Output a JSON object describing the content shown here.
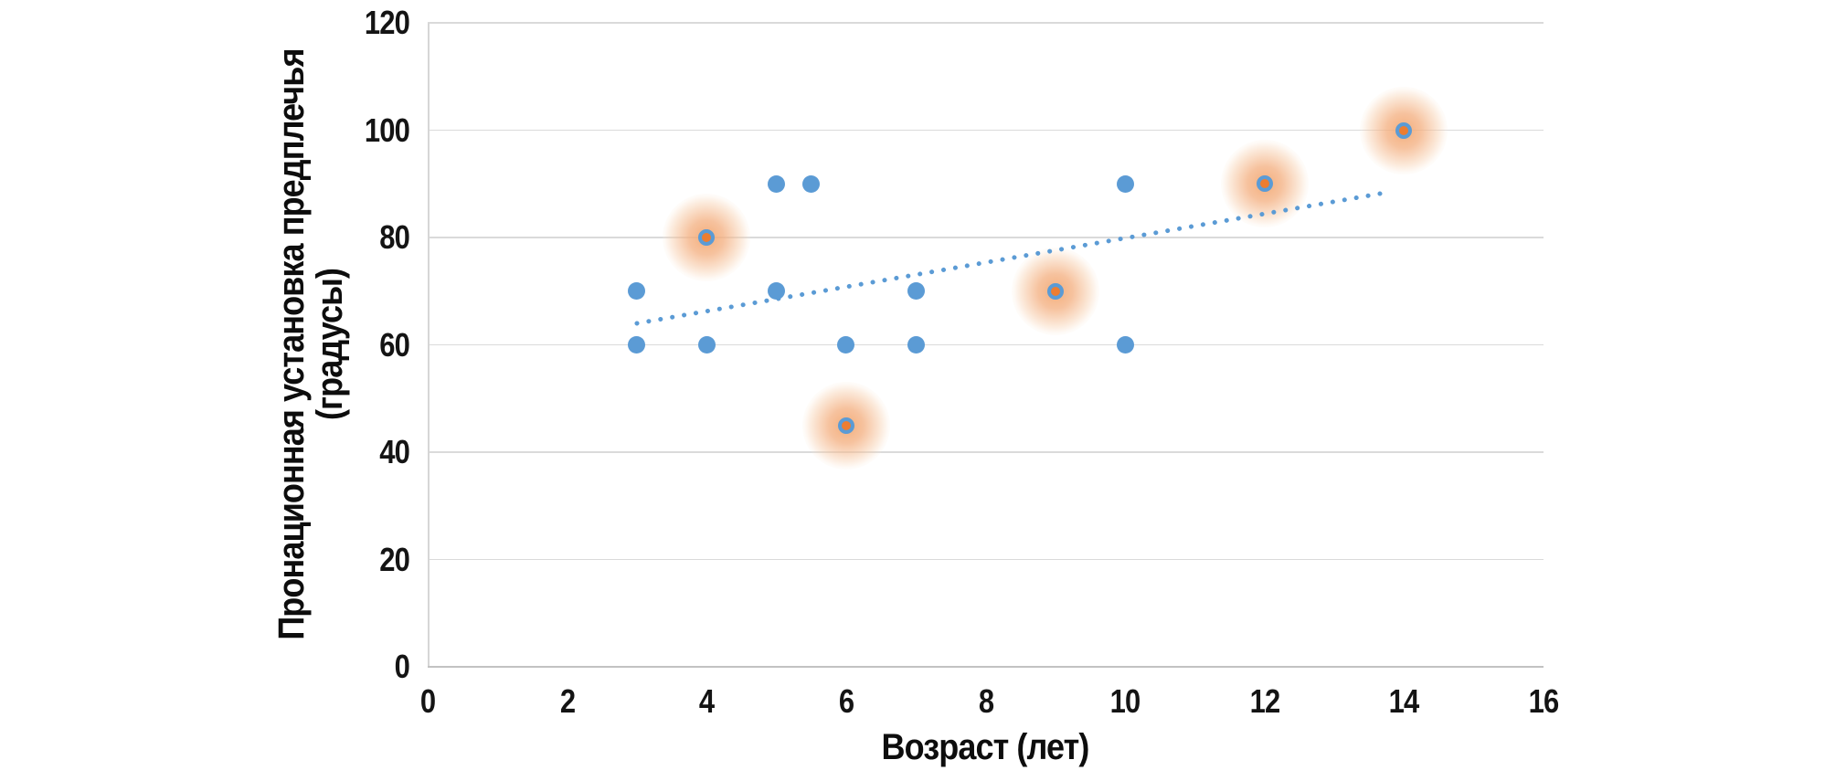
{
  "chart_data": {
    "type": "scatter",
    "title": "",
    "xlabel": "Возраст (лет)",
    "ylabel_line1": "Пронационная установка предплечья",
    "ylabel_line2": "(градусы)",
    "xlim": [
      0,
      16
    ],
    "ylim": [
      0,
      120
    ],
    "x_ticks": [
      0,
      2,
      4,
      6,
      8,
      10,
      12,
      14,
      16
    ],
    "y_ticks": [
      0,
      20,
      40,
      60,
      80,
      100,
      120
    ],
    "grid": "horizontal-only",
    "legend_position": "none",
    "series": [
      {
        "name": "regular",
        "marker": "circle",
        "color": "#5B9BD5",
        "points": [
          [
            3,
            60
          ],
          [
            3,
            70
          ],
          [
            4,
            60
          ],
          [
            5,
            70
          ],
          [
            5,
            90
          ],
          [
            5.5,
            90
          ],
          [
            6,
            60
          ],
          [
            7,
            60
          ],
          [
            7,
            70
          ],
          [
            10,
            60
          ],
          [
            10,
            90
          ]
        ]
      },
      {
        "name": "highlighted",
        "marker": "circle-with-orange-core-and-glow",
        "color": "#ED7D31",
        "ring_color": "#5B9BD5",
        "glow_color": "#F4B183",
        "points": [
          [
            4,
            80
          ],
          [
            6,
            45
          ],
          [
            9,
            70
          ],
          [
            12,
            90
          ],
          [
            14,
            100
          ]
        ]
      }
    ],
    "trendline": {
      "type": "linear",
      "style": "dotted",
      "color": "#5B9BD5",
      "x_start": 3,
      "y_start": 64,
      "x_end": 13.8,
      "y_end": 88.5
    },
    "colors": {
      "gridline": "#D9D9D9",
      "axis_line": "#BFBFBF",
      "text": "#141414",
      "background": "#FFFFFF"
    }
  }
}
